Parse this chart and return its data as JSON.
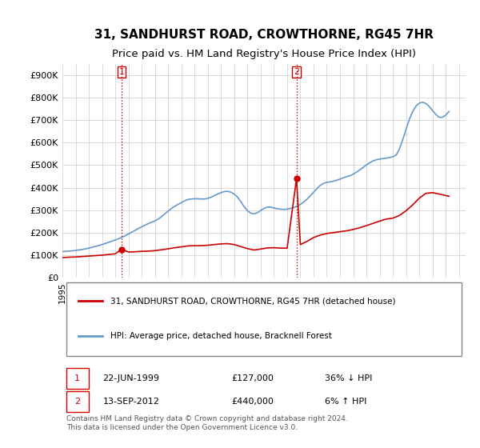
{
  "title": "31, SANDHURST ROAD, CROWTHORNE, RG45 7HR",
  "subtitle": "Price paid vs. HM Land Registry's House Price Index (HPI)",
  "ylim": [
    0,
    950000
  ],
  "yticks": [
    0,
    100000,
    200000,
    300000,
    400000,
    500000,
    600000,
    700000,
    800000,
    900000
  ],
  "ytick_labels": [
    "£0",
    "£100K",
    "£200K",
    "£300K",
    "£400K",
    "£500K",
    "£600K",
    "£700K",
    "£800K",
    "£900K"
  ],
  "background_color": "#ffffff",
  "plot_bg_color": "#ffffff",
  "grid_color": "#cccccc",
  "hpi_color": "#6699cc",
  "price_color": "#cc0000",
  "vline_color": "#cc0000",
  "marker1_year": 1999.47,
  "marker1_price": 127000,
  "marker2_year": 2012.71,
  "marker2_price": 440000,
  "legend_label1": "31, SANDHURST ROAD, CROWTHORNE, RG45 7HR (detached house)",
  "legend_label2": "HPI: Average price, detached house, Bracknell Forest",
  "table_row1": [
    "1",
    "22-JUN-1999",
    "£127,000",
    "36% ↓ HPI"
  ],
  "table_row2": [
    "2",
    "13-SEP-2012",
    "£440,000",
    "6% ↑ HPI"
  ],
  "footer": "Contains HM Land Registry data © Crown copyright and database right 2024.\nThis data is licensed under the Open Government Licence v3.0.",
  "title_fontsize": 11,
  "subtitle_fontsize": 9.5,
  "hpi_data_years": [
    1995.0,
    1995.25,
    1995.5,
    1995.75,
    1996.0,
    1996.25,
    1996.5,
    1996.75,
    1997.0,
    1997.25,
    1997.5,
    1997.75,
    1998.0,
    1998.25,
    1998.5,
    1998.75,
    1999.0,
    1999.25,
    1999.5,
    1999.75,
    2000.0,
    2000.25,
    2000.5,
    2000.75,
    2001.0,
    2001.25,
    2001.5,
    2001.75,
    2002.0,
    2002.25,
    2002.5,
    2002.75,
    2003.0,
    2003.25,
    2003.5,
    2003.75,
    2004.0,
    2004.25,
    2004.5,
    2004.75,
    2005.0,
    2005.25,
    2005.5,
    2005.75,
    2006.0,
    2006.25,
    2006.5,
    2006.75,
    2007.0,
    2007.25,
    2007.5,
    2007.75,
    2008.0,
    2008.25,
    2008.5,
    2008.75,
    2009.0,
    2009.25,
    2009.5,
    2009.75,
    2010.0,
    2010.25,
    2010.5,
    2010.75,
    2011.0,
    2011.25,
    2011.5,
    2011.75,
    2012.0,
    2012.25,
    2012.5,
    2012.75,
    2013.0,
    2013.25,
    2013.5,
    2013.75,
    2014.0,
    2014.25,
    2014.5,
    2014.75,
    2015.0,
    2015.25,
    2015.5,
    2015.75,
    2016.0,
    2016.25,
    2016.5,
    2016.75,
    2017.0,
    2017.25,
    2017.5,
    2017.75,
    2018.0,
    2018.25,
    2018.5,
    2018.75,
    2019.0,
    2019.25,
    2019.5,
    2019.75,
    2020.0,
    2020.25,
    2020.5,
    2020.75,
    2021.0,
    2021.25,
    2021.5,
    2021.75,
    2022.0,
    2022.25,
    2022.5,
    2022.75,
    2023.0,
    2023.25,
    2023.5,
    2023.75,
    2024.0,
    2024.25
  ],
  "hpi_data_values": [
    117000,
    118000,
    119000,
    120000,
    122000,
    124000,
    126000,
    129000,
    132000,
    136000,
    140000,
    144000,
    148000,
    153000,
    158000,
    163000,
    168000,
    174000,
    180000,
    187000,
    195000,
    203000,
    211000,
    219000,
    227000,
    234000,
    241000,
    247000,
    253000,
    261000,
    272000,
    284000,
    296000,
    308000,
    318000,
    326000,
    334000,
    342000,
    348000,
    350000,
    351000,
    351000,
    350000,
    350000,
    353000,
    358000,
    365000,
    372000,
    378000,
    383000,
    384000,
    380000,
    372000,
    358000,
    338000,
    316000,
    298000,
    287000,
    284000,
    289000,
    299000,
    308000,
    314000,
    314000,
    310000,
    307000,
    305000,
    304000,
    305000,
    308000,
    312000,
    318000,
    326000,
    336000,
    349000,
    364000,
    380000,
    396000,
    410000,
    419000,
    424000,
    426000,
    429000,
    433000,
    438000,
    444000,
    449000,
    453000,
    460000,
    469000,
    479000,
    490000,
    501000,
    511000,
    519000,
    524000,
    527000,
    529000,
    531000,
    534000,
    537000,
    545000,
    572000,
    614000,
    660000,
    703000,
    738000,
    762000,
    775000,
    779000,
    773000,
    760000,
    742000,
    725000,
    712000,
    712000,
    722000,
    738000
  ],
  "price_line_years": [
    1995.0,
    1995.5,
    1996.0,
    1996.5,
    1997.0,
    1997.5,
    1998.0,
    1998.5,
    1999.0,
    1999.47,
    2000.0,
    2000.5,
    2001.0,
    2001.5,
    2002.0,
    2002.5,
    2003.0,
    2003.5,
    2004.0,
    2004.5,
    2005.0,
    2005.5,
    2006.0,
    2006.5,
    2007.0,
    2007.5,
    2008.0,
    2008.5,
    2009.0,
    2009.5,
    2010.0,
    2010.5,
    2011.0,
    2011.5,
    2012.0,
    2012.71,
    2013.0,
    2013.5,
    2014.0,
    2014.5,
    2015.0,
    2015.5,
    2016.0,
    2016.5,
    2017.0,
    2017.5,
    2018.0,
    2018.5,
    2019.0,
    2019.5,
    2020.0,
    2020.5,
    2021.0,
    2021.5,
    2022.0,
    2022.5,
    2023.0,
    2023.5,
    2024.0,
    2024.25
  ],
  "price_line_values": [
    90000,
    92000,
    93000,
    95000,
    97000,
    99000,
    101000,
    104000,
    107000,
    127000,
    115000,
    116000,
    118000,
    119000,
    121000,
    125000,
    129000,
    134000,
    138000,
    142000,
    143000,
    143000,
    145000,
    148000,
    151000,
    152000,
    148000,
    139000,
    130000,
    124000,
    128000,
    133000,
    134000,
    132000,
    132000,
    440000,
    148000,
    162000,
    179000,
    190000,
    197000,
    201000,
    205000,
    209000,
    215000,
    223000,
    232000,
    242000,
    252000,
    261000,
    265000,
    277000,
    298000,
    324000,
    354000,
    375000,
    378000,
    372000,
    365000,
    362000
  ]
}
